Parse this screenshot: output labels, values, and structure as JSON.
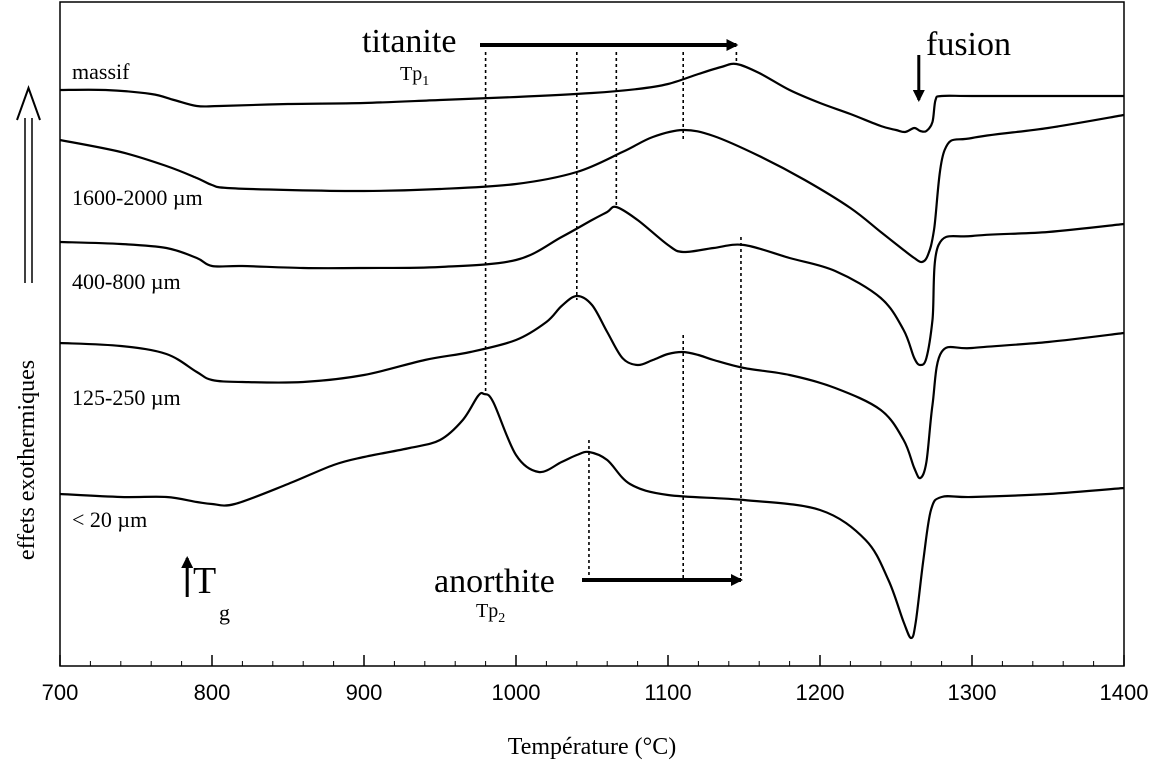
{
  "chart_data": {
    "type": "line",
    "title": "",
    "xlabel": "Température (°C)",
    "ylabel": "effets exothermiques",
    "xlim": [
      700,
      1400
    ],
    "x_ticks": [
      700,
      800,
      900,
      1000,
      1100,
      1200,
      1300,
      1400
    ],
    "x_minor_step": 20,
    "grid": false,
    "y_units": "arbitrary (stacked, offset curves)",
    "series": [
      {
        "name": "massif",
        "x": [
          700,
          730,
          760,
          775,
          790,
          805,
          850,
          900,
          950,
          1000,
          1050,
          1080,
          1100,
          1120,
          1135,
          1145,
          1160,
          1180,
          1200,
          1220,
          1240,
          1250,
          1256,
          1262,
          1266,
          1270,
          1274,
          1276,
          1280,
          1300,
          1350,
          1400
        ],
        "y": [
          90,
          90,
          94,
          100,
          106,
          106,
          104,
          103,
          100,
          97,
          93,
          89,
          84,
          74,
          67,
          64,
          73,
          90,
          103,
          114,
          126,
          130,
          132,
          128,
          131,
          131,
          122,
          100,
          96,
          96,
          96,
          96
        ]
      },
      {
        "name": "1600-2000 µm",
        "x": [
          700,
          740,
          770,
          790,
          800,
          810,
          850,
          900,
          950,
          1000,
          1040,
          1070,
          1090,
          1110,
          1130,
          1160,
          1190,
          1220,
          1240,
          1255,
          1262,
          1267,
          1271,
          1275,
          1282,
          1300,
          1350,
          1400
        ],
        "y": [
          140,
          152,
          166,
          178,
          185,
          188,
          190,
          191,
          189,
          184,
          172,
          152,
          137,
          130,
          136,
          156,
          180,
          208,
          232,
          250,
          258,
          262,
          255,
          230,
          150,
          138,
          128,
          115
        ]
      },
      {
        "name": "400-800 µm",
        "x": [
          700,
          740,
          770,
          790,
          800,
          820,
          860,
          900,
          950,
          1000,
          1030,
          1050,
          1060,
          1066,
          1080,
          1100,
          1110,
          1130,
          1150,
          1180,
          1210,
          1240,
          1255,
          1262,
          1266,
          1270,
          1274,
          1278,
          1300,
          1350,
          1400
        ],
        "y": [
          242,
          244,
          248,
          258,
          266,
          266,
          268,
          268,
          267,
          260,
          237,
          220,
          212,
          207,
          220,
          245,
          252,
          248,
          245,
          258,
          271,
          298,
          330,
          358,
          365,
          358,
          320,
          245,
          236,
          232,
          224
        ]
      },
      {
        "name": "125-250 µm",
        "x": [
          700,
          740,
          770,
          790,
          800,
          820,
          860,
          900,
          940,
          970,
          1000,
          1020,
          1030,
          1040,
          1050,
          1060,
          1070,
          1080,
          1090,
          1100,
          1110,
          1120,
          1130,
          1150,
          1180,
          1210,
          1240,
          1255,
          1262,
          1266,
          1270,
          1274,
          1280,
          1300,
          1350,
          1400
        ],
        "y": [
          343,
          346,
          354,
          372,
          380,
          382,
          382,
          375,
          360,
          352,
          340,
          322,
          306,
          296,
          305,
          332,
          358,
          365,
          360,
          354,
          352,
          355,
          360,
          368,
          375,
          388,
          410,
          440,
          468,
          478,
          462,
          405,
          352,
          348,
          342,
          333
        ]
      },
      {
        "name": "< 20 µm",
        "x": [
          700,
          740,
          770,
          790,
          800,
          815,
          850,
          880,
          900,
          930,
          950,
          965,
          975,
          979,
          985,
          1000,
          1015,
          1030,
          1040,
          1048,
          1060,
          1075,
          1100,
          1150,
          1200,
          1230,
          1245,
          1255,
          1260,
          1263,
          1268,
          1273,
          1280,
          1300,
          1350,
          1400
        ],
        "y": [
          494,
          497,
          497,
          502,
          504,
          504,
          484,
          465,
          457,
          448,
          440,
          420,
          396,
          394,
          402,
          455,
          472,
          462,
          455,
          452,
          460,
          484,
          495,
          500,
          510,
          540,
          580,
          622,
          638,
          622,
          560,
          510,
          497,
          497,
          494,
          488
        ]
      }
    ],
    "annotations": {
      "titanite": {
        "label": "titanite",
        "sub_label": "Tp",
        "sub_index": "1",
        "arrow": [
          980,
          1145
        ]
      },
      "anorthite": {
        "label": "anorthite",
        "sub_label": "Tp",
        "sub_index": "2",
        "arrow": [
          1045,
          1148
        ]
      },
      "fusion": {
        "label": "fusion",
        "at": 1265
      },
      "tg": {
        "label": "T",
        "sub": "g",
        "at": 785
      },
      "tp1_markers": [
        980,
        1040,
        1066,
        1110,
        1145
      ],
      "tp2_markers": [
        1048,
        1110,
        1148
      ]
    }
  }
}
